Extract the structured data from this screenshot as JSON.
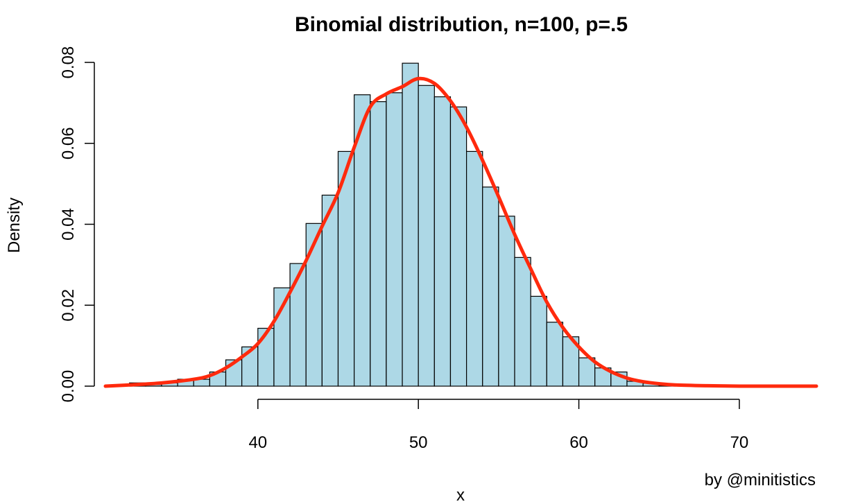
{
  "chart_data": {
    "type": "bar",
    "title": "Binomial distribution, n=100, p=.5",
    "xlabel": "x",
    "ylabel": "Density",
    "credit": "by @minitistics",
    "bar_color": "#add8e6",
    "curve_color": "#ff2a0d",
    "xlim": [
      30.5,
      74.8
    ],
    "ylim": [
      0,
      0.08
    ],
    "x_ticks": [
      40,
      50,
      60,
      70
    ],
    "x_tick_labels": [
      "40",
      "50",
      "60",
      "70"
    ],
    "y_ticks": [
      0,
      0.02,
      0.04,
      0.06,
      0.08
    ],
    "y_tick_labels": [
      "0.00",
      "0.02",
      "0.04",
      "0.06",
      "0.08"
    ],
    "histogram": {
      "bin_width": 1,
      "bin_starts": [
        32,
        33,
        34,
        35,
        36,
        37,
        38,
        39,
        40,
        41,
        42,
        43,
        44,
        45,
        46,
        47,
        48,
        49,
        50,
        51,
        52,
        53,
        54,
        55,
        56,
        57,
        58,
        59,
        60,
        61,
        62,
        63,
        64,
        65
      ],
      "density": [
        0.0008,
        0.0004,
        0.0008,
        0.0017,
        0.0017,
        0.0035,
        0.0065,
        0.0097,
        0.0143,
        0.0243,
        0.0303,
        0.0402,
        0.0472,
        0.058,
        0.072,
        0.0703,
        0.0725,
        0.0798,
        0.0743,
        0.0715,
        0.069,
        0.058,
        0.0492,
        0.042,
        0.0318,
        0.0222,
        0.0158,
        0.0122,
        0.007,
        0.0045,
        0.0035,
        0.0012,
        0.0007,
        0.0002
      ]
    },
    "density_curve": {
      "x": [
        30.5,
        32,
        34,
        36,
        37,
        38,
        39,
        40,
        41,
        42,
        43,
        44,
        45,
        46,
        47,
        48,
        49,
        50,
        51,
        52,
        53,
        54,
        55,
        56,
        57,
        58,
        59,
        60,
        61,
        62,
        63,
        64,
        65,
        66,
        68,
        70,
        72,
        74.8
      ],
      "y": [
        0.0,
        0.0003,
        0.0008,
        0.0017,
        0.0026,
        0.0045,
        0.0072,
        0.0105,
        0.016,
        0.0232,
        0.031,
        0.0395,
        0.0478,
        0.059,
        0.069,
        0.0722,
        0.074,
        0.076,
        0.0748,
        0.0705,
        0.064,
        0.0558,
        0.0468,
        0.0375,
        0.029,
        0.0208,
        0.0145,
        0.0097,
        0.006,
        0.0036,
        0.002,
        0.0011,
        0.0006,
        0.0003,
        0.0001,
        0.0,
        0.0,
        0.0
      ]
    }
  }
}
